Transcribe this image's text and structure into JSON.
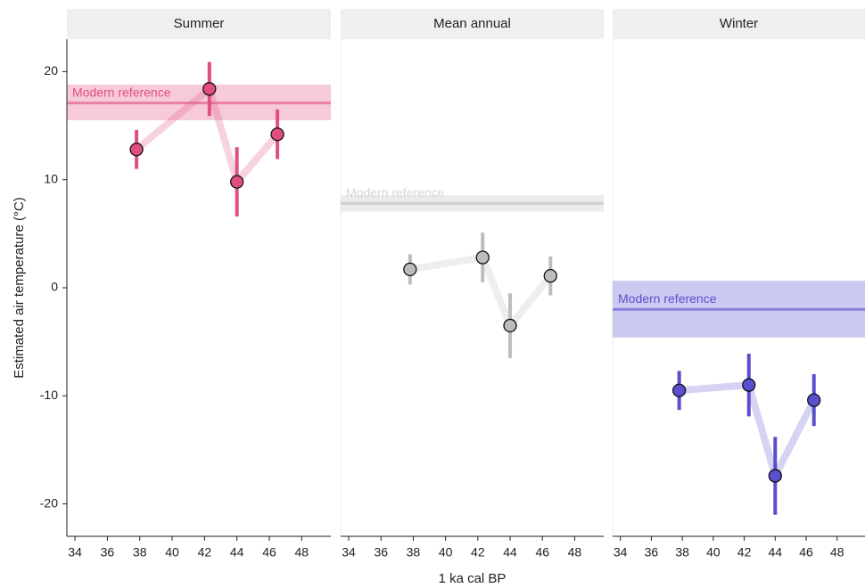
{
  "chart_data": [
    {
      "type": "errorbar-line",
      "title": "Summer",
      "color": "#e0507e",
      "ylabel": "Estimated air temperature (°C)",
      "x": [
        37.8,
        42.3,
        44.0,
        46.5
      ],
      "values": [
        12.8,
        18.4,
        9.8,
        14.2
      ],
      "errors": [
        1.8,
        2.5,
        3.2,
        2.3
      ],
      "reference": {
        "label": "Modern reference",
        "value": 17.1,
        "band": [
          15.5,
          18.8
        ]
      },
      "xlim": [
        33.5,
        49.8
      ],
      "xticks": [
        34,
        36,
        38,
        40,
        42,
        44,
        46,
        48
      ],
      "ylim": [
        -23,
        23
      ],
      "yticks": [
        -20,
        -10,
        0,
        10,
        20
      ]
    },
    {
      "type": "errorbar-line",
      "title": "Mean annual",
      "color": "#bdbdbd",
      "xlabel": "1 ka cal BP",
      "x": [
        37.8,
        42.3,
        44.0,
        46.5
      ],
      "values": [
        1.7,
        2.8,
        -3.5,
        1.1
      ],
      "errors": [
        1.4,
        2.3,
        3.0,
        1.8
      ],
      "reference": {
        "label": "Modern reference",
        "value": 7.8,
        "band": [
          7.05,
          8.55
        ]
      },
      "xlim": [
        33.5,
        49.8
      ],
      "xticks": [
        34,
        36,
        38,
        40,
        42,
        44,
        46,
        48
      ],
      "ylim": [
        -23,
        23
      ]
    },
    {
      "type": "errorbar-line",
      "title": "Winter",
      "color": "#5a4fcf",
      "x": [
        37.8,
        42.3,
        44.0,
        46.5
      ],
      "values": [
        -9.5,
        -9.0,
        -17.4,
        -10.4
      ],
      "errors": [
        1.8,
        2.9,
        3.6,
        2.4
      ],
      "reference": {
        "label": "Modern reference",
        "value": -2.0,
        "band": [
          -4.6,
          0.65
        ]
      },
      "xlim": [
        33.5,
        49.8
      ],
      "xticks": [
        34,
        36,
        38,
        40,
        42,
        44,
        46,
        48
      ],
      "ylim": [
        -23,
        23
      ]
    }
  ]
}
